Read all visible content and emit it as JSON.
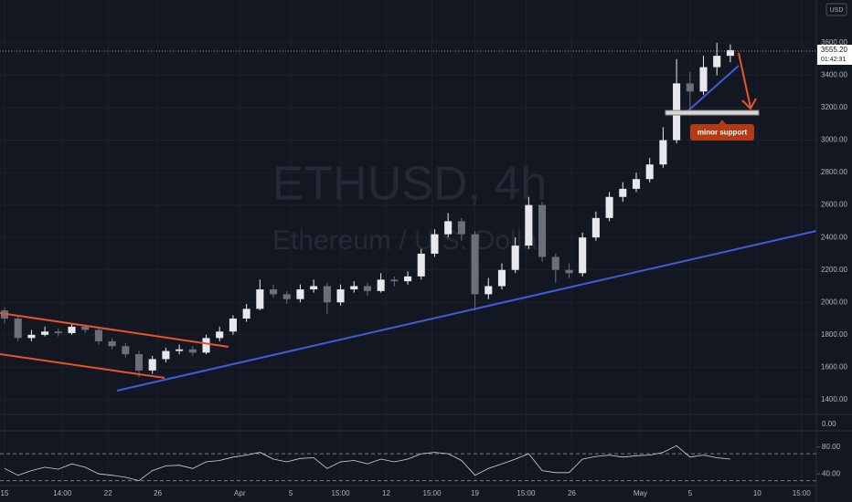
{
  "chart_data": {
    "type": "candlestick",
    "watermark": "ETHUSD, 4h",
    "watermark_subtitle": "Ethereum / U.S. Dollar",
    "currency": "USD",
    "current_price_label": "3555.20",
    "countdown": "01:42:31",
    "annotation": "minor support",
    "pane2_label": "0.00",
    "up_color": "#e8e8ec",
    "down_color": "#6b6f7a",
    "grid": true,
    "x": [
      0,
      1,
      2,
      3,
      4,
      5,
      6,
      7,
      8,
      9,
      10,
      11,
      12,
      13,
      14,
      15,
      16,
      17,
      18,
      19,
      20,
      21,
      22,
      23,
      24,
      25,
      26,
      27,
      28,
      29,
      30,
      31,
      32,
      33,
      34,
      35,
      36,
      37,
      38,
      39,
      40,
      41,
      42,
      43,
      44,
      45,
      46,
      47,
      48,
      49,
      50,
      51,
      52,
      53,
      54
    ],
    "ohlc": [
      [
        1950,
        1970,
        1870,
        1900
      ],
      [
        1900,
        1920,
        1760,
        1780
      ],
      [
        1780,
        1830,
        1760,
        1800
      ],
      [
        1800,
        1850,
        1790,
        1820
      ],
      [
        1820,
        1840,
        1790,
        1810
      ],
      [
        1810,
        1870,
        1800,
        1850
      ],
      [
        1850,
        1860,
        1810,
        1830
      ],
      [
        1830,
        1840,
        1740,
        1760
      ],
      [
        1760,
        1780,
        1710,
        1730
      ],
      [
        1730,
        1750,
        1660,
        1680
      ],
      [
        1680,
        1700,
        1540,
        1580
      ],
      [
        1580,
        1670,
        1560,
        1650
      ],
      [
        1650,
        1720,
        1630,
        1700
      ],
      [
        1700,
        1740,
        1680,
        1710
      ],
      [
        1710,
        1730,
        1670,
        1690
      ],
      [
        1690,
        1800,
        1680,
        1780
      ],
      [
        1780,
        1850,
        1760,
        1820
      ],
      [
        1820,
        1920,
        1800,
        1900
      ],
      [
        1900,
        1990,
        1880,
        1960
      ],
      [
        1960,
        2140,
        1950,
        2080
      ],
      [
        2080,
        2110,
        2030,
        2050
      ],
      [
        2050,
        2070,
        1990,
        2020
      ],
      [
        2020,
        2110,
        2000,
        2080
      ],
      [
        2080,
        2140,
        2060,
        2100
      ],
      [
        2100,
        2120,
        1930,
        2000
      ],
      [
        2000,
        2110,
        1980,
        2080
      ],
      [
        2080,
        2130,
        2060,
        2100
      ],
      [
        2100,
        2120,
        2040,
        2070
      ],
      [
        2070,
        2180,
        2060,
        2140
      ],
      [
        2140,
        2160,
        2100,
        2130
      ],
      [
        2130,
        2190,
        2110,
        2160
      ],
      [
        2160,
        2330,
        2140,
        2300
      ],
      [
        2300,
        2450,
        2280,
        2420
      ],
      [
        2420,
        2550,
        2400,
        2500
      ],
      [
        2500,
        2520,
        2380,
        2420
      ],
      [
        2420,
        2440,
        1950,
        2050
      ],
      [
        2050,
        2150,
        2020,
        2100
      ],
      [
        2100,
        2240,
        2080,
        2200
      ],
      [
        2200,
        2400,
        2180,
        2350
      ],
      [
        2350,
        2650,
        2330,
        2600
      ],
      [
        2600,
        2620,
        2250,
        2280
      ],
      [
        2280,
        2300,
        2120,
        2200
      ],
      [
        2200,
        2240,
        2150,
        2180
      ],
      [
        2180,
        2430,
        2160,
        2400
      ],
      [
        2400,
        2560,
        2380,
        2520
      ],
      [
        2520,
        2680,
        2500,
        2650
      ],
      [
        2650,
        2740,
        2620,
        2700
      ],
      [
        2700,
        2800,
        2680,
        2760
      ],
      [
        2760,
        2890,
        2740,
        2850
      ],
      [
        2850,
        3080,
        2830,
        3000
      ],
      [
        3000,
        3500,
        2980,
        3350
      ],
      [
        3350,
        3420,
        3180,
        3300
      ],
      [
        3300,
        3520,
        3280,
        3450
      ],
      [
        3450,
        3600,
        3400,
        3520
      ],
      [
        3520,
        3590,
        3480,
        3555.2
      ]
    ],
    "xlim": [
      -0.34,
      60.4
    ],
    "xticks": [
      {
        "value": 0,
        "label": "15"
      },
      {
        "value": 4.3,
        "label": "14:00"
      },
      {
        "value": 7.7,
        "label": "22"
      },
      {
        "value": 11.4,
        "label": "26"
      },
      {
        "value": 17.5,
        "label": "Apr"
      },
      {
        "value": 21.3,
        "label": "5"
      },
      {
        "value": 25,
        "label": "15:00"
      },
      {
        "value": 28.4,
        "label": "12"
      },
      {
        "value": 31.8,
        "label": "15:00"
      },
      {
        "value": 35,
        "label": "19"
      },
      {
        "value": 38.8,
        "label": "15:00"
      },
      {
        "value": 42.2,
        "label": "26"
      },
      {
        "value": 47.3,
        "label": "May"
      },
      {
        "value": 51,
        "label": "5"
      },
      {
        "value": 56,
        "label": "10"
      },
      {
        "value": 59.3,
        "label": "15:00"
      }
    ],
    "ylim": [
      1315,
      3864
    ],
    "yticks": [
      {
        "value": 1400,
        "label": "1400.00"
      },
      {
        "value": 1600,
        "label": "1600.00"
      },
      {
        "value": 1800,
        "label": "1800.00"
      },
      {
        "value": 2000,
        "label": "2000.00"
      },
      {
        "value": 2200,
        "label": "2200.00"
      },
      {
        "value": 2400,
        "label": "2400.00"
      },
      {
        "value": 2600,
        "label": "2600.00"
      },
      {
        "value": 2800,
        "label": "2800.00"
      },
      {
        "value": 3000,
        "label": "3000.00"
      },
      {
        "value": 3200,
        "label": "3200.00"
      },
      {
        "value": 3400,
        "label": "3400.00"
      },
      {
        "value": 3600,
        "label": "3600.00"
      }
    ],
    "rsi": [
      48,
      38,
      45,
      50,
      47,
      55,
      50,
      40,
      38,
      35,
      30,
      45,
      52,
      53,
      48,
      58,
      60,
      65,
      68,
      72,
      62,
      58,
      63,
      64,
      48,
      58,
      60,
      55,
      62,
      58,
      62,
      70,
      72,
      70,
      60,
      38,
      48,
      55,
      62,
      70,
      45,
      42,
      42,
      62,
      66,
      68,
      65,
      67,
      68,
      72,
      82,
      65,
      68,
      64,
      62
    ],
    "rsi_ylim": [
      22.7,
      102.7
    ],
    "rsi_yticks": [
      {
        "value": 40,
        "label": "40.00"
      },
      {
        "value": 80,
        "label": "80.00"
      }
    ],
    "rsi_bands": [
      30,
      70
    ]
  }
}
